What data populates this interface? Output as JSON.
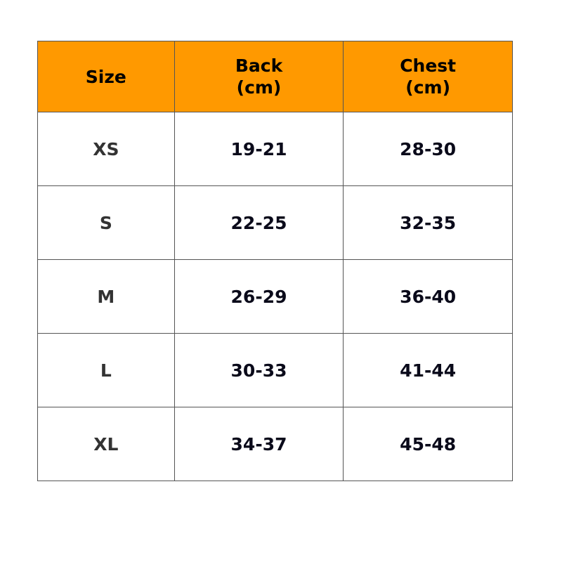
{
  "table": {
    "colors": {
      "header_bg": "#FF9900",
      "border": "#555555"
    },
    "headers": [
      {
        "line1": "Size",
        "line2": ""
      },
      {
        "line1": "Back",
        "line2": "(cm)"
      },
      {
        "line1": "Chest",
        "line2": "(cm)"
      }
    ],
    "rows": [
      {
        "size": "XS",
        "back": "19-21",
        "chest": "28-30"
      },
      {
        "size": "S",
        "back": "22-25",
        "chest": "32-35"
      },
      {
        "size": "M",
        "back": "26-29",
        "chest": "36-40"
      },
      {
        "size": "L",
        "back": "30-33",
        "chest": "41-44"
      },
      {
        "size": "XL",
        "back": "34-37",
        "chest": "45-48"
      }
    ]
  }
}
